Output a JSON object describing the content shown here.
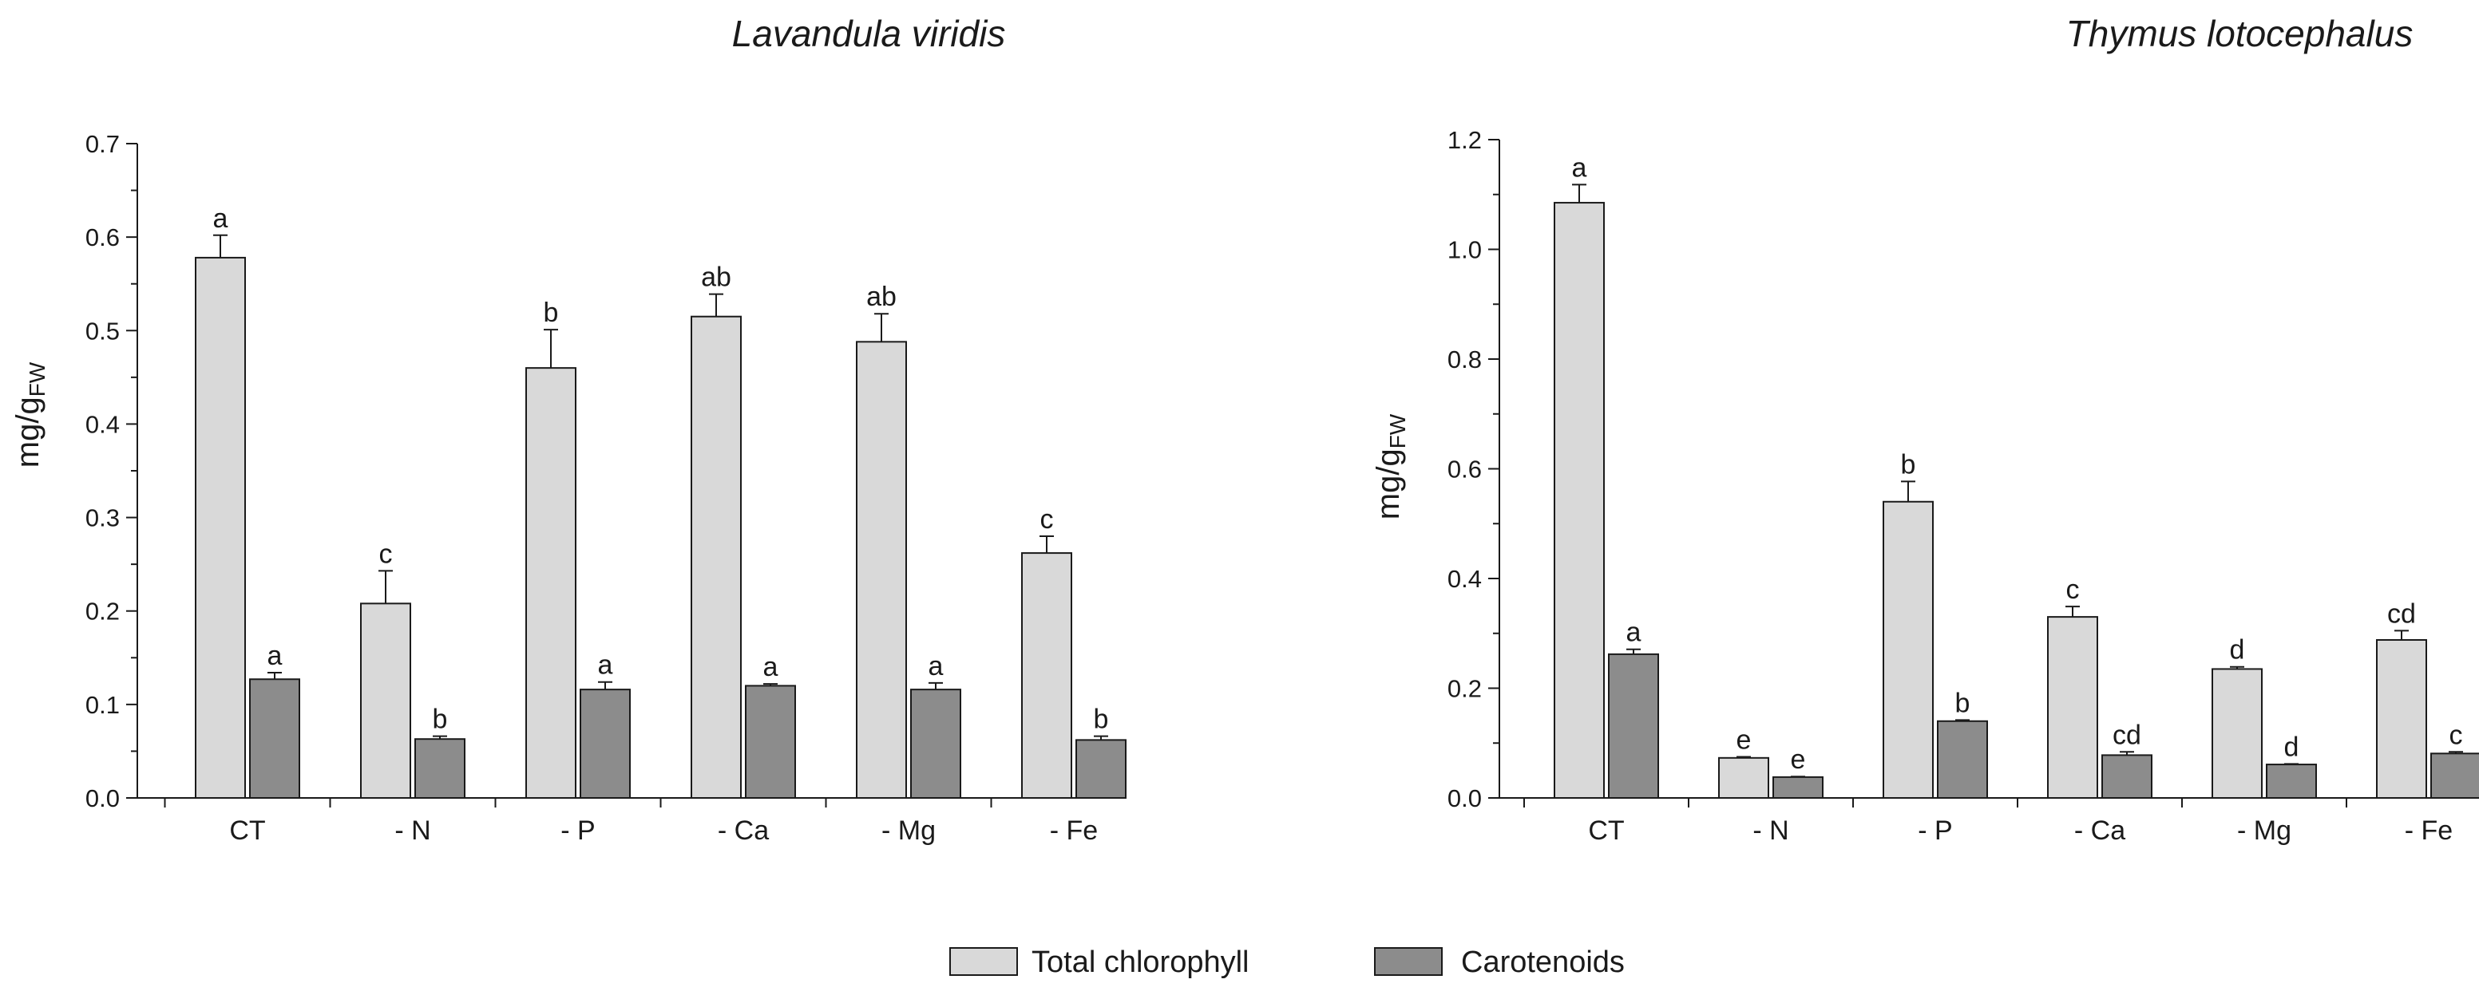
{
  "figure": {
    "legend": {
      "entries": [
        {
          "label": "Total chlorophyll",
          "color": "#d9d9d9"
        },
        {
          "label": "Carotenoids",
          "color": "#8c8c8c"
        }
      ]
    },
    "colors": {
      "series_light": "#d9d9d9",
      "series_dark": "#8c8c8c",
      "stroke": "#1a1a1a"
    }
  },
  "chart_data": [
    {
      "type": "bar",
      "title": "Lavandula viridis",
      "ylabel_main": "mg/g",
      "ylabel_sub": "FW",
      "xlabel": "",
      "categories": [
        "CT",
        "- N",
        "- P",
        "- Ca",
        "- Mg",
        "- Fe"
      ],
      "ylim": [
        0,
        0.7
      ],
      "yticks": [
        0.0,
        0.1,
        0.2,
        0.3,
        0.4,
        0.5,
        0.6,
        0.7
      ],
      "ytick_labels": [
        "0.0",
        "0.1",
        "0.2",
        "0.3",
        "0.4",
        "0.5",
        "0.6",
        "0.7"
      ],
      "series": [
        {
          "name": "Total chlorophyll",
          "values": [
            0.578,
            0.208,
            0.46,
            0.515,
            0.488,
            0.262
          ],
          "errors": [
            0.024,
            0.035,
            0.041,
            0.024,
            0.03,
            0.018
          ],
          "labels": [
            "a",
            "c",
            "b",
            "ab",
            "ab",
            "c"
          ]
        },
        {
          "name": "Carotenoids",
          "values": [
            0.127,
            0.063,
            0.116,
            0.12,
            0.116,
            0.062
          ],
          "errors": [
            0.007,
            0.003,
            0.008,
            0.002,
            0.007,
            0.004
          ],
          "labels": [
            "a",
            "b",
            "a",
            "a",
            "a",
            "b"
          ]
        }
      ]
    },
    {
      "type": "bar",
      "title": "Thymus lotocephalus",
      "ylabel_main": "mg/g",
      "ylabel_sub": "FW",
      "xlabel": "",
      "categories": [
        "CT",
        "- N",
        "- P",
        "- Ca",
        "- Mg",
        "- Fe"
      ],
      "ylim": [
        0,
        1.2
      ],
      "yticks": [
        0.0,
        0.2,
        0.4,
        0.6,
        0.8,
        1.0,
        1.2
      ],
      "ytick_labels": [
        "0.0",
        "0.2",
        "0.4",
        "0.6",
        "0.8",
        "1.0",
        "1.2"
      ],
      "series": [
        {
          "name": "Total chlorophyll",
          "values": [
            1.085,
            0.073,
            0.54,
            0.33,
            0.235,
            0.288
          ],
          "errors": [
            0.033,
            0.002,
            0.037,
            0.019,
            0.004,
            0.017
          ],
          "labels": [
            "a",
            "e",
            "b",
            "c",
            "d",
            "cd"
          ]
        },
        {
          "name": "Carotenoids",
          "values": [
            0.262,
            0.038,
            0.14,
            0.078,
            0.061,
            0.081
          ],
          "errors": [
            0.009,
            0.001,
            0.002,
            0.006,
            0.001,
            0.003
          ],
          "labels": [
            "a",
            "e",
            "b",
            "cd",
            "d",
            "c"
          ]
        }
      ]
    }
  ]
}
